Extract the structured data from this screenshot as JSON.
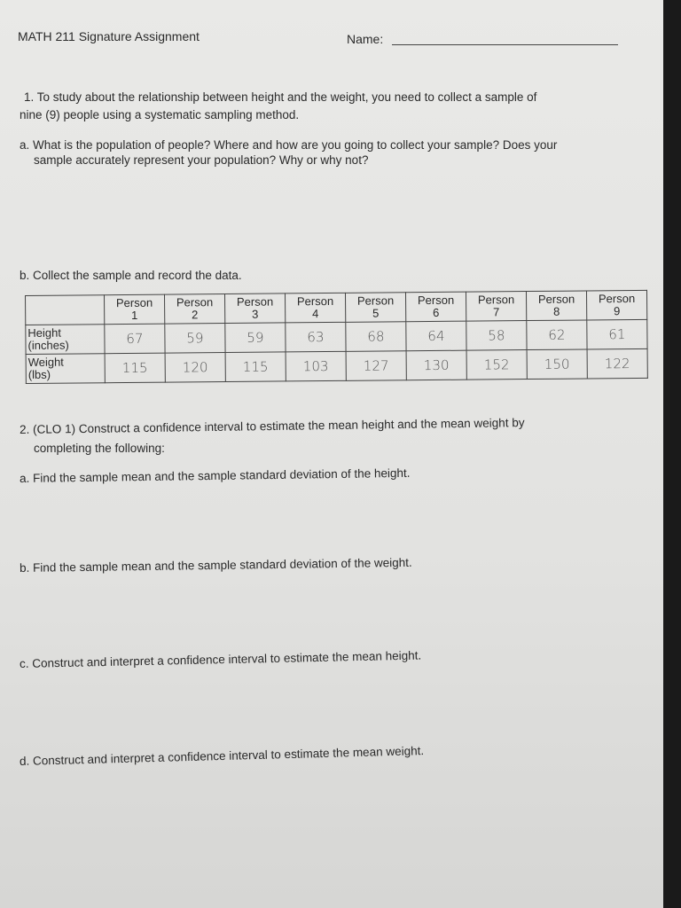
{
  "header": {
    "course": "MATH 211 Signature Assignment",
    "name_label": "Name:"
  },
  "q1": {
    "text": "1. To study about the relationship between height and the weight, you need to collect a sample of",
    "text2": "nine (9) people using a systematic sampling method.",
    "a": "a. What is the population of people? Where and how are you going to collect your sample? Does your",
    "a2": "sample accurately represent your population?  Why or why not?",
    "b": "b. Collect the sample and record the data."
  },
  "table": {
    "columns": [
      [
        "Person",
        "1"
      ],
      [
        "Person",
        "2"
      ],
      [
        "Person",
        "3"
      ],
      [
        "Person",
        "4"
      ],
      [
        "Person",
        "5"
      ],
      [
        "Person",
        "6"
      ],
      [
        "Person",
        "7"
      ],
      [
        "Person",
        "8"
      ],
      [
        "Person",
        "9"
      ]
    ],
    "rows": [
      {
        "label": "Height",
        "unit": "(inches)",
        "values": [
          "67",
          "59",
          "59",
          "63",
          "68",
          "64",
          "58",
          "62",
          "61"
        ]
      },
      {
        "label": "Weight",
        "unit": "(lbs)",
        "values": [
          "115",
          "120",
          "115",
          "103",
          "127",
          "130",
          "152",
          "150",
          "122"
        ]
      }
    ]
  },
  "q2": {
    "text": "2. (CLO 1) Construct a confidence interval to estimate the mean height and the mean weight by",
    "text2": "completing the following:",
    "a": "a. Find the sample mean and the sample standard deviation of the height.",
    "b": "b. Find the sample mean and the sample standard deviation of the weight.",
    "c": "c. Construct and interpret a confidence interval to estimate the mean height.",
    "d": "d. Construct and interpret a confidence interval to estimate the mean weight."
  }
}
